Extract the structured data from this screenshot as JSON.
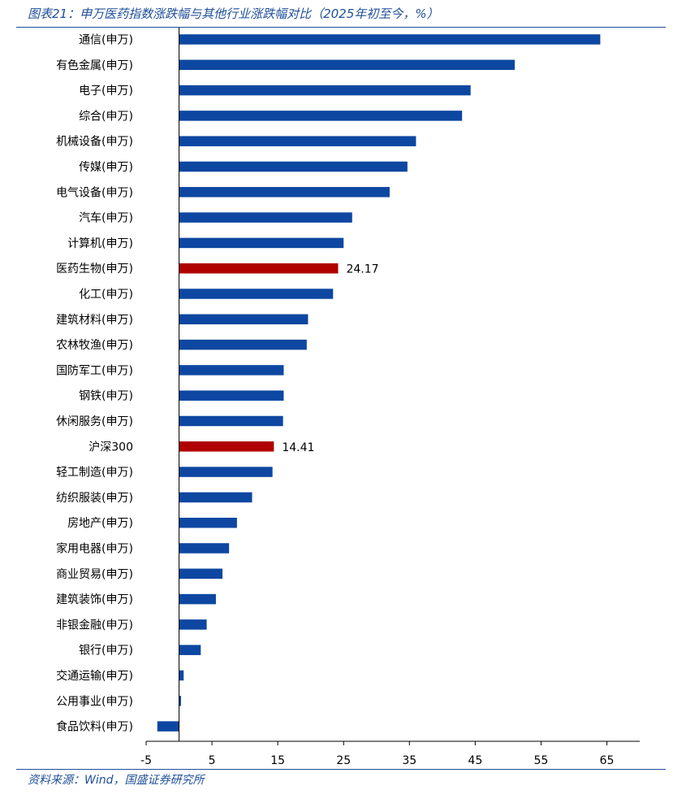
{
  "figure": {
    "title": "图表21：申万医药指数涨跌幅与其他行业涨跌幅对比（2025年初至今，%）",
    "source": "资料来源：Wind，国盛证券研究所"
  },
  "colors": {
    "bar": "#0d47a1",
    "highlight": "#b00000",
    "accent": "#1f4e9a",
    "axis": "#000000"
  },
  "chart_data": {
    "type": "bar",
    "orientation": "horizontal",
    "title": "图表21：申万医药指数涨跌幅与其他行业涨跌幅对比（2025年初至今，%）",
    "xlabel": "",
    "ylabel": "",
    "xlim": [
      -5,
      70
    ],
    "xticks": [
      -5,
      5,
      15,
      25,
      35,
      45,
      55,
      65
    ],
    "grid": false,
    "categories": [
      "通信(申万)",
      "有色金属(申万)",
      "电子(申万)",
      "综合(申万)",
      "机械设备(申万)",
      "传媒(申万)",
      "电气设备(申万)",
      "汽车(申万)",
      "计算机(申万)",
      "医药生物(申万)",
      "化工(申万)",
      "建筑材料(申万)",
      "农林牧渔(申万)",
      "国防军工(申万)",
      "钢铁(申万)",
      "休闲服务(申万)",
      "沪深300",
      "轻工制造(申万)",
      "纺织服装(申万)",
      "房地产(申万)",
      "家用电器(申万)",
      "商业贸易(申万)",
      "建筑装饰(申万)",
      "非银金融(申万)",
      "银行(申万)",
      "交通运输(申万)",
      "公用事业(申万)",
      "食品饮料(申万)"
    ],
    "values": [
      64.0,
      51.0,
      44.3,
      43.0,
      36.0,
      34.7,
      32.0,
      26.3,
      25.0,
      24.17,
      23.4,
      19.6,
      19.4,
      15.9,
      15.9,
      15.8,
      14.41,
      14.2,
      11.1,
      8.8,
      7.6,
      6.6,
      5.6,
      4.2,
      3.3,
      0.7,
      0.3,
      -3.3
    ],
    "highlighted": [
      "医药生物(申万)",
      "沪深300"
    ],
    "data_labels": [
      {
        "category": "医药生物(申万)",
        "text": "24.17"
      },
      {
        "category": "沪深300",
        "text": "14.41"
      }
    ]
  }
}
